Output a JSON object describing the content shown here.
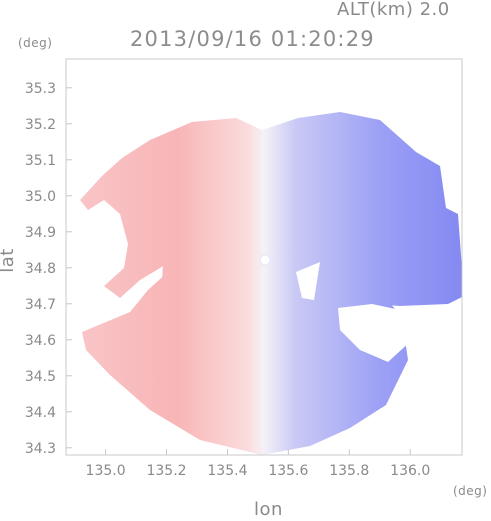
{
  "header": {
    "altitude_label": "ALT(km) 2.0",
    "timestamp": "2013/09/16 01:20:29"
  },
  "axes": {
    "y_unit": "(deg)",
    "x_unit": "(deg)",
    "y_label": "lat",
    "x_label": "lon",
    "y_ticks": [
      "35.3",
      "35.2",
      "35.1",
      "35.0",
      "34.9",
      "34.8",
      "34.7",
      "34.6",
      "34.5",
      "34.4",
      "34.3"
    ],
    "x_ticks": [
      "135.0",
      "135.2",
      "135.4",
      "135.6",
      "135.8",
      "136.0"
    ],
    "x_range": [
      134.87,
      136.17
    ],
    "y_range": [
      34.28,
      35.38
    ]
  },
  "radar": {
    "center_lon": 135.53,
    "center_lat": 34.815,
    "colors": {
      "approaching": "#7b80f2",
      "receding": "#f7a8aa",
      "near_zero": "#f3f1f5",
      "frame": "#c8c8c8"
    }
  }
}
